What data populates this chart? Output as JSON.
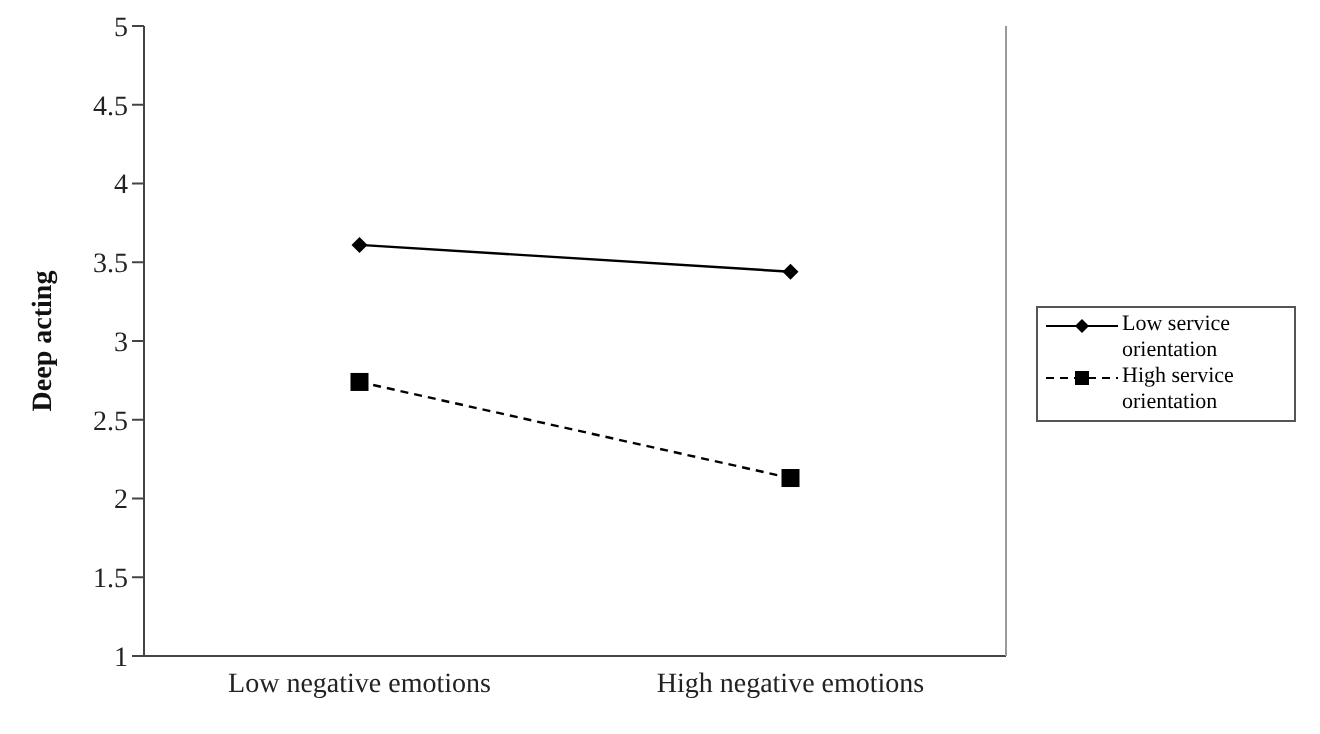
{
  "chart_data": {
    "type": "line",
    "ylabel": "Deep acting",
    "categories": [
      "Low negative emotions",
      "High negative emotions"
    ],
    "series": [
      {
        "name": "Low service orientation",
        "color": "#000000",
        "values": [
          3.61,
          3.44
        ],
        "marker": "diamond",
        "line_style": "solid"
      },
      {
        "name": "High service orientation",
        "color": "#000000",
        "values": [
          2.74,
          2.13
        ],
        "marker": "square",
        "line_style": "dashed"
      }
    ],
    "ylim": [
      1,
      5
    ],
    "yticks": [
      1,
      1.5,
      2,
      2.5,
      3,
      3.5,
      4,
      4.5,
      5
    ],
    "grid": false,
    "legend": "right"
  }
}
